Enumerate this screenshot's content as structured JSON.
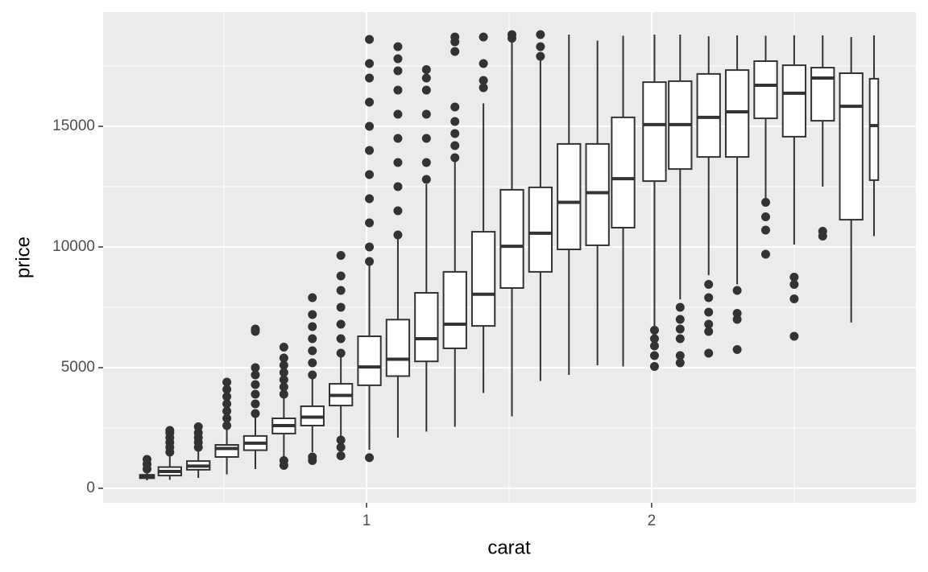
{
  "chart_data": {
    "type": "boxplot",
    "xlabel": "carat",
    "ylabel": "price",
    "x": [
      0.23,
      0.31,
      0.41,
      0.51,
      0.61,
      0.71,
      0.81,
      0.91,
      1.01,
      1.11,
      1.21,
      1.31,
      1.41,
      1.51,
      1.61,
      1.71,
      1.81,
      1.9,
      2.01,
      2.1,
      2.2,
      2.3,
      2.4,
      2.5,
      2.6,
      2.7,
      2.78
    ],
    "widths": [
      0.05,
      0.08,
      0.08,
      0.08,
      0.08,
      0.08,
      0.08,
      0.08,
      0.08,
      0.08,
      0.08,
      0.08,
      0.08,
      0.08,
      0.08,
      0.08,
      0.08,
      0.08,
      0.08,
      0.08,
      0.08,
      0.08,
      0.08,
      0.08,
      0.08,
      0.08,
      0.03
    ],
    "lower": [
      330,
      350,
      430,
      580,
      800,
      1250,
      1500,
      2050,
      1600,
      2100,
      2350,
      2550,
      3950,
      2980,
      4450,
      4700,
      5100,
      5050,
      6650,
      7830,
      8830,
      8450,
      12000,
      10100,
      12500,
      6870,
      10450
    ],
    "q1": [
      420,
      530,
      770,
      1300,
      1580,
      2270,
      2600,
      3430,
      4270,
      4650,
      5260,
      5800,
      6730,
      8300,
      8970,
      9900,
      10070,
      10800,
      12730,
      13230,
      13730,
      13730,
      15330,
      14570,
      15230,
      11130,
      12770
    ],
    "median": [
      500,
      700,
      920,
      1650,
      1870,
      2600,
      2950,
      3850,
      5030,
      5350,
      6200,
      6800,
      8040,
      10030,
      10570,
      11850,
      12250,
      12830,
      15070,
      15070,
      15370,
      15600,
      16700,
      16370,
      17000,
      15830,
      15030
    ],
    "q3": [
      560,
      880,
      1130,
      1800,
      2170,
      2900,
      3400,
      4330,
      6300,
      6990,
      8100,
      8970,
      10630,
      12370,
      12470,
      14270,
      14270,
      15370,
      16830,
      16870,
      17170,
      17330,
      17700,
      17530,
      17430,
      17200,
      16970
    ],
    "upper": [
      760,
      1400,
      1650,
      2500,
      3000,
      3800,
      4600,
      5450,
      9300,
      10400,
      12600,
      13600,
      15950,
      18550,
      17750,
      18800,
      18550,
      18750,
      18800,
      18800,
      18730,
      18770,
      18750,
      18770,
      18770,
      18700,
      18770
    ],
    "outliers": [
      [
        800,
        1000,
        1200
      ],
      [
        1500,
        1700,
        1900,
        2100,
        2300,
        2400
      ],
      [
        1700,
        1900,
        2100,
        2300,
        2550
      ],
      [
        2600,
        2900,
        3200,
        3500,
        3800,
        4100,
        4400
      ],
      [
        3100,
        3500,
        3900,
        4300,
        4700,
        5000,
        6500,
        6600
      ],
      [
        950,
        1150,
        3900,
        4200,
        4500,
        4800,
        5100,
        5400,
        5850
      ],
      [
        1150,
        1300,
        4700,
        5200,
        5700,
        6200,
        6700,
        7200,
        7900
      ],
      [
        1350,
        1700,
        2000,
        5600,
        6200,
        6800,
        7500,
        8200,
        8800,
        9650
      ],
      [
        1270,
        9400,
        10000,
        11000,
        12000,
        13000,
        14000,
        15000,
        16000,
        17000,
        17600,
        18600
      ],
      [
        10500,
        11500,
        12500,
        13500,
        14500,
        15500,
        16500,
        17300,
        17800,
        18300
      ],
      [
        12800,
        13500,
        14500,
        15500,
        16500,
        17000,
        17350
      ],
      [
        13700,
        14200,
        14700,
        15200,
        15800,
        18100,
        18500,
        18700
      ],
      [
        16600,
        16900,
        17600,
        18700
      ],
      [
        18650,
        18800
      ],
      [
        17900,
        18300,
        18800
      ],
      [],
      [],
      [],
      [
        5050,
        5500,
        5900,
        6200,
        6550
      ],
      [
        5200,
        5500,
        6200,
        6600,
        7000,
        7500
      ],
      [
        5600,
        6500,
        6800,
        7300,
        7900,
        8450
      ],
      [
        5750,
        7000,
        7250,
        8200
      ],
      [
        9700,
        10700,
        11250,
        11850
      ],
      [
        6300,
        7850,
        8450,
        8750
      ],
      [
        10450,
        10650
      ],
      [],
      []
    ],
    "color": "#333333",
    "xlim": [
      0.076,
      2.927
    ],
    "xticks": [
      1,
      2
    ],
    "xminor": [
      0.5,
      1.5,
      2.5
    ],
    "ylim": [
      -600,
      19733
    ],
    "yticks": [
      0,
      5000,
      10000,
      15000
    ],
    "yminor": [
      2500,
      7500,
      12500,
      17500
    ],
    "grid": true
  }
}
